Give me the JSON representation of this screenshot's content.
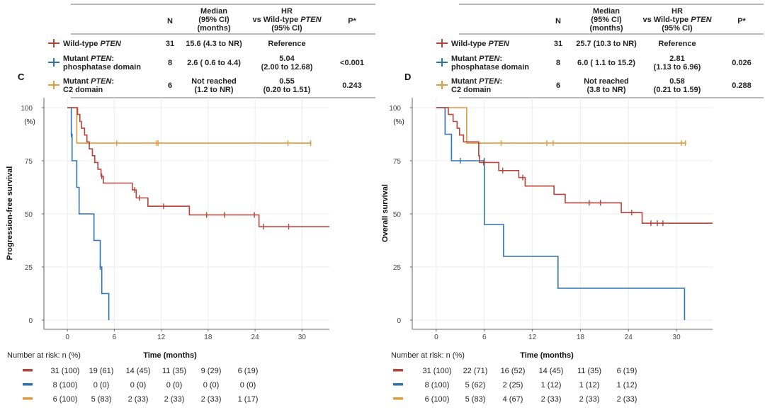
{
  "colors": {
    "wild": "#b5443b",
    "phos": "#2d74b5",
    "c2": "#e39a3d",
    "axis": "#444444",
    "frame": "#666666"
  },
  "table_headers": {
    "n": "N",
    "median": [
      "Median",
      "(95% CI)",
      "(months)"
    ],
    "hr": [
      "HR",
      "vs Wild-type PTEN",
      "(95% CI)"
    ],
    "p": "P*"
  },
  "risk_title": "Number at risk: n (%)",
  "panels": [
    {
      "letter": "C",
      "rows": [
        {
          "label": [
            "Wild-type PTEN"
          ],
          "n": "31",
          "median": [
            "15.6 (4.3 to NR)"
          ],
          "hr": [
            "Reference"
          ],
          "p": ""
        },
        {
          "label": [
            "Mutant PTEN:",
            "phosphatase domain"
          ],
          "n": "8",
          "median": [
            "2.6 ( 0.6 to 4.4)"
          ],
          "hr": [
            "5.04",
            "(2.00 to 12.68)"
          ],
          "p": "<0.001"
        },
        {
          "label": [
            "Mutant PTEN:",
            "C2 domain"
          ],
          "n": "6",
          "median": [
            "Not reached",
            "(1.2 to NR)"
          ],
          "hr": [
            "0.55",
            "(0.20 to 1.51)"
          ],
          "p": "0.243"
        }
      ],
      "risk_table": [
        [
          "31 (100)",
          "19 (61)",
          "14 (45)",
          "11 (35)",
          "9 (29)",
          "6 (19)"
        ],
        [
          "8 (100)",
          "0 (0)",
          "0 (0)",
          "0 (0)",
          "0 (0)",
          "0 (0)"
        ],
        [
          "6 (100)",
          "5 (83)",
          "2 (33)",
          "2 (33)",
          "2 (33)",
          "1 (17)"
        ]
      ]
    },
    {
      "letter": "D",
      "rows": [
        {
          "label": [
            "Wild-type PTEN"
          ],
          "n": "31",
          "median": [
            "25.7 (10.3 to NR)"
          ],
          "hr": [
            "Reference"
          ],
          "p": ""
        },
        {
          "label": [
            "Mutant PTEN:",
            "phosphatase domain"
          ],
          "n": "8",
          "median": [
            "6.0 ( 1.1 to 15.2)"
          ],
          "hr": [
            "2.81",
            "(1.13 to 6.96)"
          ],
          "p": "0.026"
        },
        {
          "label": [
            "Mutant PTEN:",
            "C2 domain"
          ],
          "n": "6",
          "median": [
            "Not reached",
            "(3.8 to NR)"
          ],
          "hr": [
            "0.58",
            "(0.21 to 1.59)"
          ],
          "p": "0.288"
        }
      ],
      "risk_table": [
        [
          "31 (100)",
          "22 (71)",
          "16 (52)",
          "14 (45)",
          "11 (35)",
          "6 (19)"
        ],
        [
          "8 (100)",
          "5 (62)",
          "2 (25)",
          "1 (12)",
          "1 (12)",
          "1 (12)"
        ],
        [
          "6 (100)",
          "5 (83)",
          "4 (67)",
          "2 (33)",
          "2 (33)",
          "2 (33)"
        ]
      ]
    }
  ],
  "chart_data": [
    {
      "type": "line",
      "subtype": "kaplan-meier-step",
      "panel": "C",
      "xlabel": "Time (months)",
      "ylabel": "Progression-free survival",
      "y_unit_label": "(%)",
      "xlim": [
        -3,
        33.5
      ],
      "ylim": [
        0,
        100
      ],
      "xticks": [
        0,
        6,
        12,
        18,
        24,
        30
      ],
      "yticks": [
        0,
        25,
        50,
        75,
        100
      ],
      "grid": true,
      "series": [
        {
          "name": "Wild-type PTEN",
          "color_key": "wild",
          "steps": [
            [
              0,
              100
            ],
            [
              1.3,
              96.8
            ],
            [
              1.6,
              93.5
            ],
            [
              1.8,
              90.3
            ],
            [
              2.2,
              87.1
            ],
            [
              2.5,
              83.9
            ],
            [
              2.8,
              80.6
            ],
            [
              3.2,
              77.4
            ],
            [
              3.5,
              74.2
            ],
            [
              3.9,
              71
            ],
            [
              4.3,
              67.7
            ],
            [
              4.6,
              64.5
            ],
            [
              8.3,
              61.3
            ],
            [
              8.8,
              57.5
            ],
            [
              10.3,
              53.6
            ],
            [
              15.6,
              49.5
            ],
            [
              24.5,
              44
            ]
          ],
          "end": 33.5,
          "censor": [
            [
              4.4,
              67.7
            ],
            [
              8.6,
              61.3
            ],
            [
              9.2,
              57.5
            ],
            [
              12.3,
              53.6
            ],
            [
              17.8,
              49.5
            ],
            [
              20.1,
              49.5
            ],
            [
              23.9,
              49.5
            ],
            [
              25.1,
              44
            ],
            [
              28.3,
              44
            ]
          ]
        },
        {
          "name": "Mutant PTEN: phosphatase domain",
          "color_key": "phos",
          "steps": [
            [
              0,
              100
            ],
            [
              0.5,
              87.5
            ],
            [
              0.6,
              75
            ],
            [
              1.2,
              62.5
            ],
            [
              1.5,
              50
            ],
            [
              3.4,
              37.5
            ],
            [
              4.2,
              25
            ],
            [
              4.4,
              12.5
            ],
            [
              5.3,
              0
            ]
          ],
          "end": 5.3,
          "censor": [
            [
              0.5,
              87.5
            ],
            [
              4.2,
              25
            ]
          ]
        },
        {
          "name": "Mutant PTEN: C2 domain",
          "color_key": "c2",
          "steps": [
            [
              0,
              100
            ],
            [
              1.2,
              83.3
            ]
          ],
          "end": 31.2,
          "censor": [
            [
              6.3,
              83.3
            ],
            [
              11.4,
              83.3
            ],
            [
              11.6,
              83.3
            ],
            [
              28.2,
              83.3
            ],
            [
              31.1,
              83.3
            ]
          ]
        }
      ]
    },
    {
      "type": "line",
      "subtype": "kaplan-meier-step",
      "panel": "D",
      "xlabel": "Time (months)",
      "ylabel": "Overall survival",
      "y_unit_label": "(%)",
      "xlim": [
        -3,
        34.5
      ],
      "ylim": [
        0,
        100
      ],
      "xticks": [
        0,
        6,
        12,
        18,
        24,
        30
      ],
      "yticks": [
        0,
        25,
        50,
        75,
        100
      ],
      "grid": true,
      "series": [
        {
          "name": "Wild-type PTEN",
          "color_key": "wild",
          "steps": [
            [
              0,
              100
            ],
            [
              1.5,
              96.8
            ],
            [
              2.1,
              93.5
            ],
            [
              2.6,
              90.3
            ],
            [
              2.9,
              87.1
            ],
            [
              3.4,
              83.9
            ],
            [
              5.3,
              77.4
            ],
            [
              5.4,
              74.2
            ],
            [
              7.8,
              70.4
            ],
            [
              10.3,
              67.1
            ],
            [
              11.1,
              63.1
            ],
            [
              14.7,
              59.2
            ],
            [
              16.1,
              55.2
            ],
            [
              23.1,
              50.6
            ],
            [
              25.7,
              45.6
            ]
          ],
          "end": 34.5,
          "censor": [
            [
              5.9,
              74.2
            ],
            [
              8.3,
              70.4
            ],
            [
              10.8,
              67.1
            ],
            [
              19.1,
              55.2
            ],
            [
              20.5,
              55.2
            ],
            [
              24.4,
              50.6
            ],
            [
              26.8,
              45.6
            ],
            [
              27.6,
              45.6
            ],
            [
              28.3,
              45.6
            ]
          ]
        },
        {
          "name": "Mutant PTEN: phosphatase domain",
          "color_key": "phos",
          "steps": [
            [
              0,
              100
            ],
            [
              1.1,
              87.5
            ],
            [
              1.9,
              75
            ],
            [
              6.0,
              45
            ],
            [
              8.4,
              30
            ],
            [
              15.2,
              15
            ],
            [
              31.0,
              0
            ]
          ],
          "end": 31.0,
          "censor": [
            [
              3.0,
              75
            ],
            [
              6.0,
              75
            ]
          ]
        },
        {
          "name": "Mutant PTEN: C2 domain",
          "color_key": "c2",
          "steps": [
            [
              0,
              100
            ],
            [
              3.8,
              83.3
            ]
          ],
          "end": 31.2,
          "censor": [
            [
              8.1,
              83.3
            ],
            [
              13.8,
              83.3
            ],
            [
              14.6,
              83.3
            ],
            [
              30.6,
              83.3
            ],
            [
              31.1,
              83.3
            ]
          ]
        }
      ]
    }
  ]
}
